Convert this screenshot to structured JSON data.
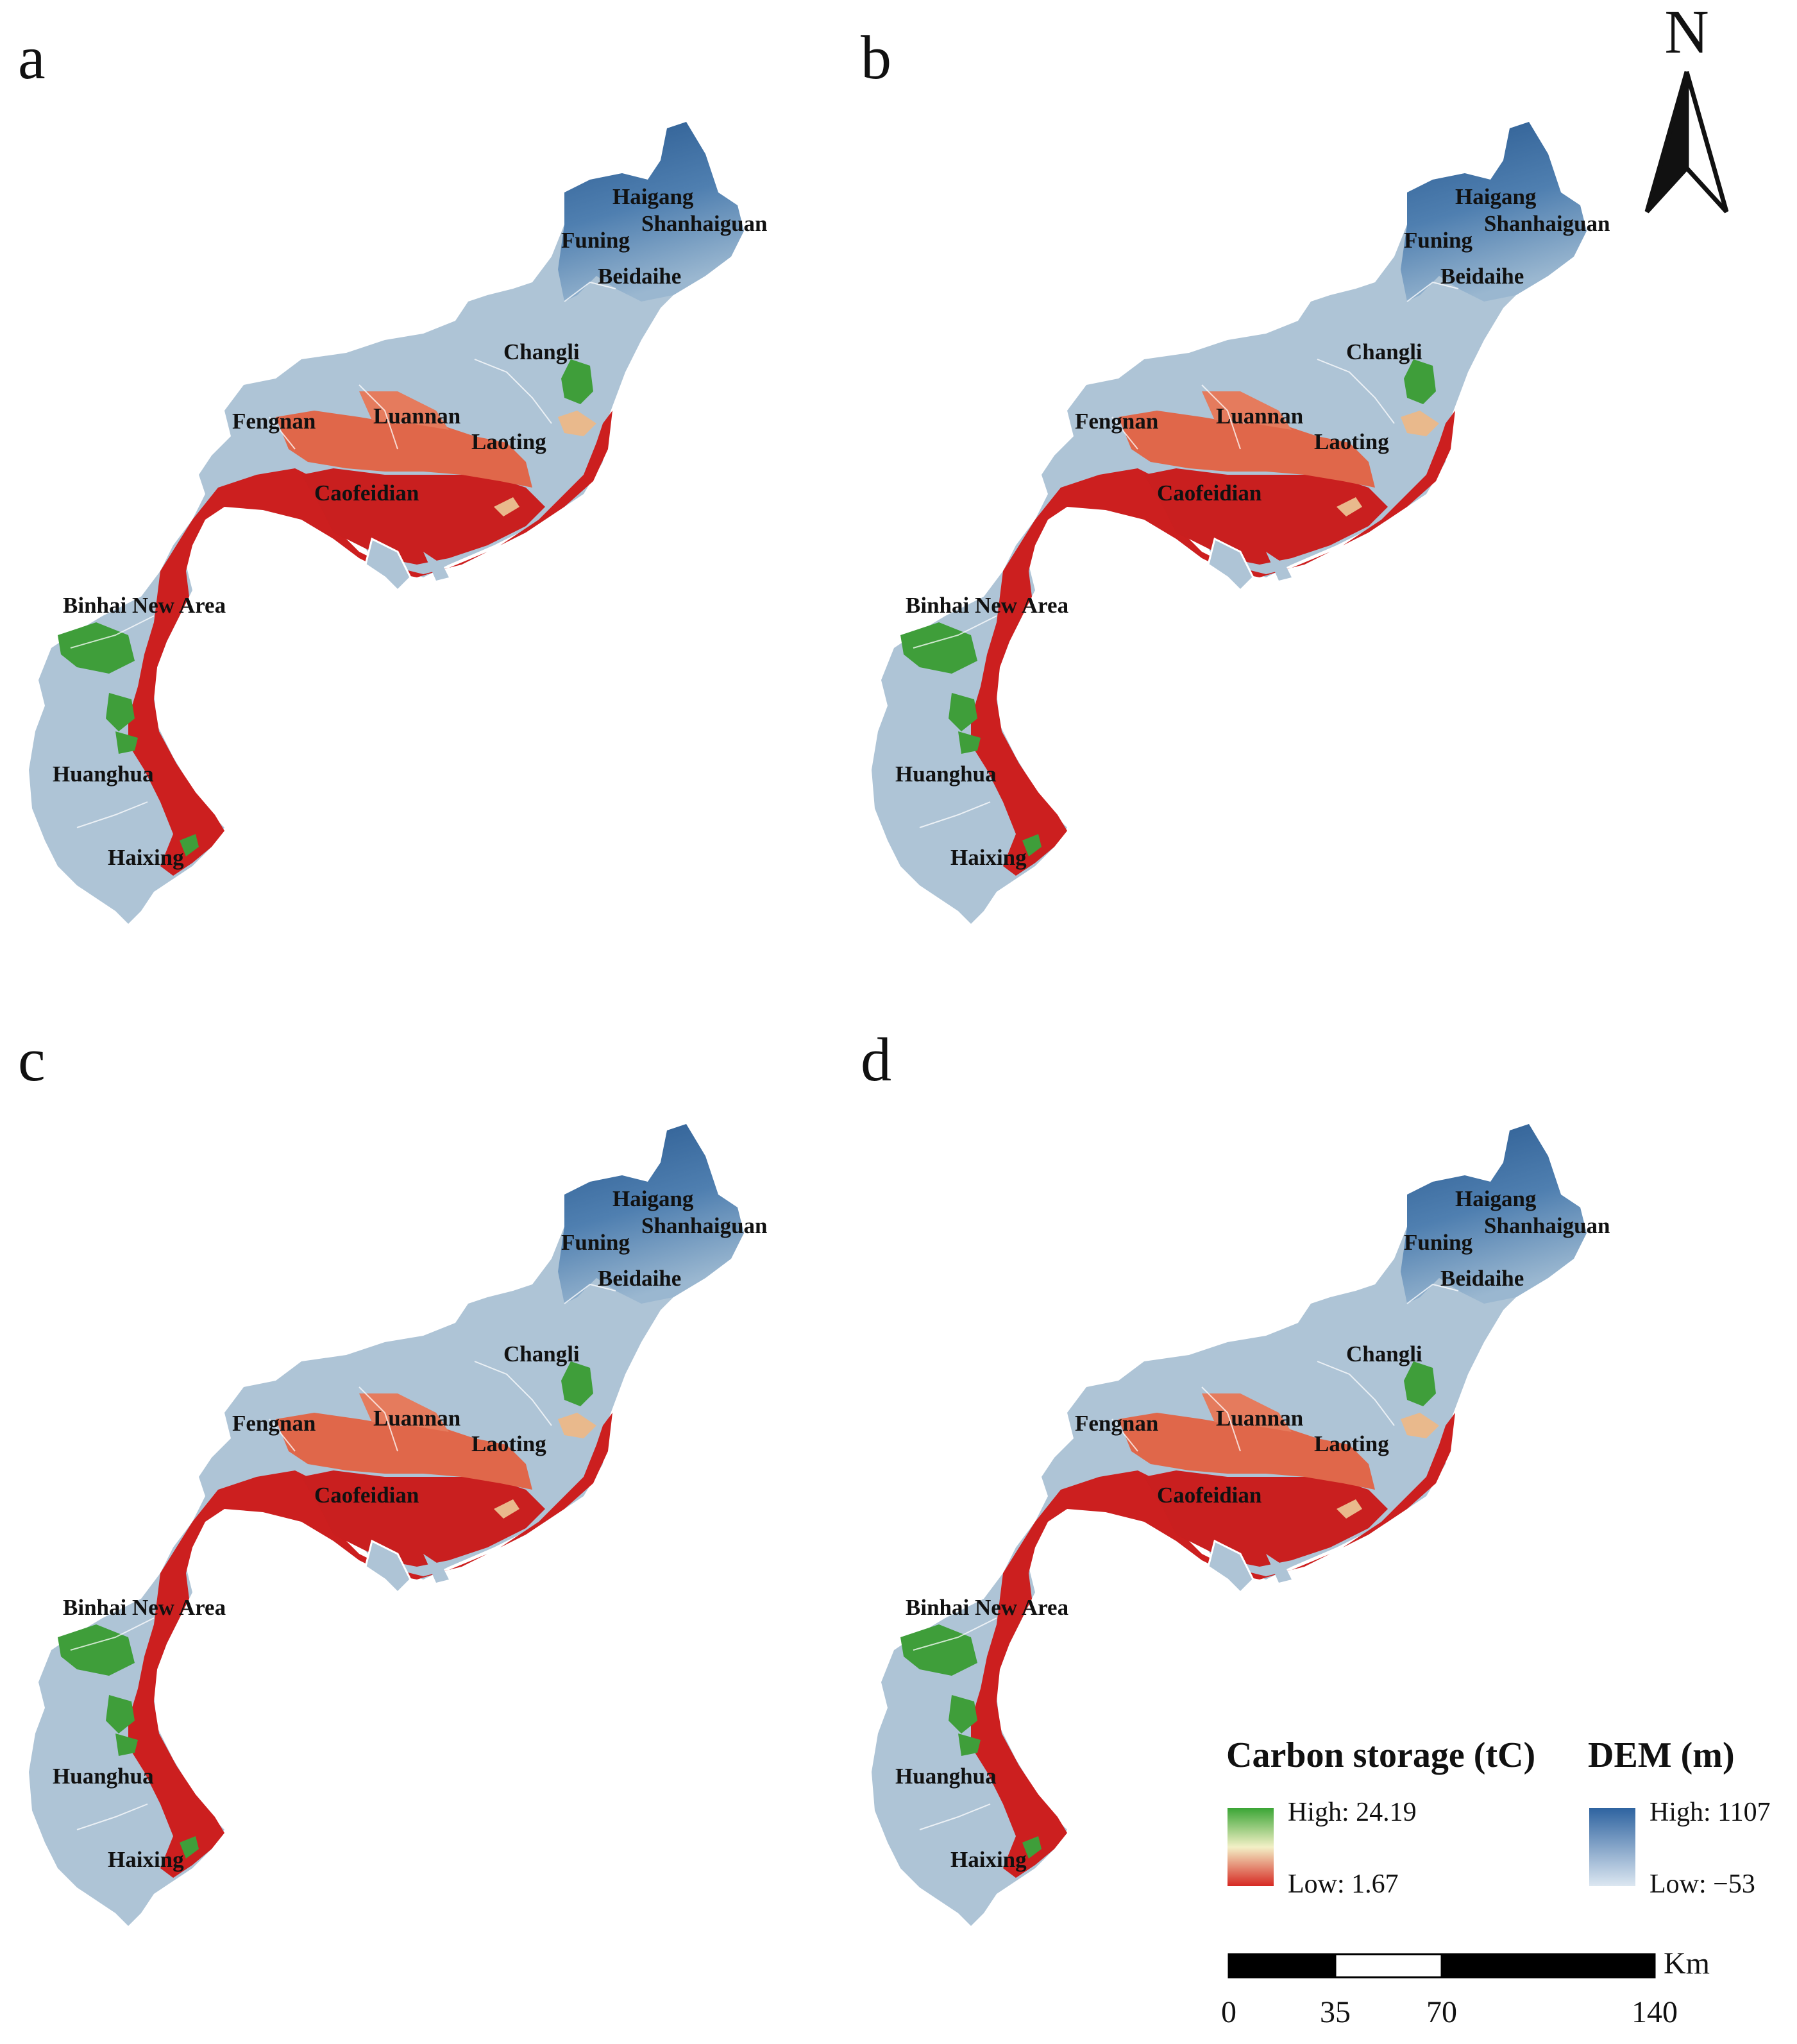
{
  "panels": [
    {
      "label": "a",
      "scenario": "a"
    },
    {
      "label": "b",
      "scenario": "b"
    },
    {
      "label": "c",
      "scenario": "c"
    },
    {
      "label": "d",
      "scenario": "d"
    }
  ],
  "places": [
    {
      "name": "Haigang"
    },
    {
      "name": "Shanhaiguan"
    },
    {
      "name": "Funing"
    },
    {
      "name": "Beidaihe"
    },
    {
      "name": "Changli"
    },
    {
      "name": "Fengnan"
    },
    {
      "name": "Luannan"
    },
    {
      "name": "Laoting"
    },
    {
      "name": "Caofeidian"
    },
    {
      "name": "Binhai New Area"
    },
    {
      "name": "Huanghua"
    },
    {
      "name": "Haixing"
    }
  ],
  "north_arrow": {
    "label": "N",
    "icon": "north-arrow-icon"
  },
  "legend": {
    "carbon": {
      "title": "Carbon storage (tC)",
      "high": "High: 24.19",
      "low": "Low: 1.67",
      "colors": {
        "high": "#3aa535",
        "mid": "#f3f0c6",
        "low": "#d62822"
      }
    },
    "dem": {
      "title": "DEM (m)",
      "high": "High: 1107",
      "low": "Low: −53",
      "colors": {
        "high": "#2e63a0",
        "low": "#dce7f1"
      }
    }
  },
  "scale_bar": {
    "unit": "Km",
    "ticks": [
      "0",
      "35",
      "70",
      "140"
    ]
  },
  "colors": {
    "land": "#aec4d6",
    "red": "#cc1f1f",
    "salmon": "#e0674a",
    "green": "#3f9e3a",
    "blue_dark": "#2e5f95",
    "blue_mid": "#5b86b3",
    "sand": "#e9b98c"
  }
}
